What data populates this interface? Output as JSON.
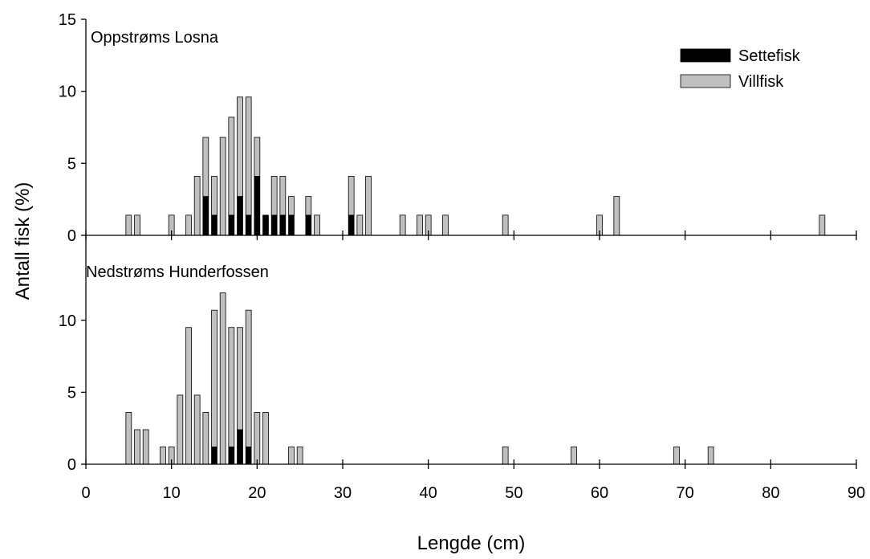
{
  "charts": [
    {
      "type": "bar",
      "title": "Oppstrøms Losna",
      "ylabel": "Antall fisk (%)",
      "x": [
        5,
        6,
        10,
        12,
        13,
        14,
        15,
        16,
        17,
        18,
        19,
        20,
        21,
        22,
        23,
        24,
        26,
        27,
        31,
        32,
        33,
        37,
        39,
        40,
        42,
        49,
        60,
        62,
        86
      ],
      "series": [
        {
          "name": "Settefisk",
          "color": "#000000",
          "values": [
            0,
            0,
            0,
            0,
            0,
            2.7,
            1.4,
            0,
            1.4,
            2.7,
            1.4,
            4.1,
            1.4,
            1.4,
            1.4,
            1.4,
            1.4,
            0,
            1.4,
            0,
            0,
            0,
            0,
            0,
            0,
            0,
            0,
            0,
            0
          ]
        },
        {
          "name": "Villfisk",
          "color": "#c0c0c0",
          "values": [
            1.4,
            1.4,
            1.4,
            1.4,
            4.1,
            4.1,
            2.7,
            6.8,
            6.8,
            6.9,
            8.2,
            2.7,
            0,
            2.7,
            2.7,
            1.3,
            1.3,
            1.4,
            2.7,
            1.4,
            4.1,
            1.4,
            1.4,
            1.4,
            1.4,
            1.4,
            1.4,
            2.7,
            1.4
          ]
        }
      ],
      "xlim": [
        0,
        90
      ],
      "ylim": [
        0,
        15
      ],
      "yticks": [
        0,
        5,
        10,
        15
      ],
      "legend": "upper right"
    },
    {
      "type": "bar",
      "title": "Nedstrøms Hunderfossen",
      "xlabel": "Lengde (cm)",
      "x": [
        5,
        6,
        7,
        9,
        10,
        11,
        12,
        13,
        14,
        15,
        16,
        17,
        18,
        19,
        20,
        21,
        24,
        25,
        49,
        57,
        69,
        73
      ],
      "series": [
        {
          "color": "#000000",
          "values": [
            0,
            0,
            0,
            0,
            0,
            0,
            0,
            0,
            0,
            1.2,
            0,
            1.2,
            2.4,
            1.2,
            0,
            0,
            0,
            0,
            0,
            0,
            0,
            0
          ]
        },
        {
          "color": "#c0c0c0",
          "values": [
            3.6,
            2.4,
            2.4,
            1.2,
            1.2,
            4.8,
            9.5,
            4.8,
            3.6,
            9.5,
            11.9,
            8.3,
            7.1,
            9.5,
            3.6,
            3.6,
            1.2,
            1.2,
            1.2,
            1.2,
            1.2,
            1.2
          ]
        }
      ],
      "xlim": [
        0,
        90
      ],
      "xticks": [
        0,
        10,
        20,
        30,
        40,
        50,
        60,
        70,
        80,
        90
      ],
      "ylim": [
        0,
        15.9
      ],
      "yticks": [
        0,
        5,
        10
      ]
    }
  ]
}
